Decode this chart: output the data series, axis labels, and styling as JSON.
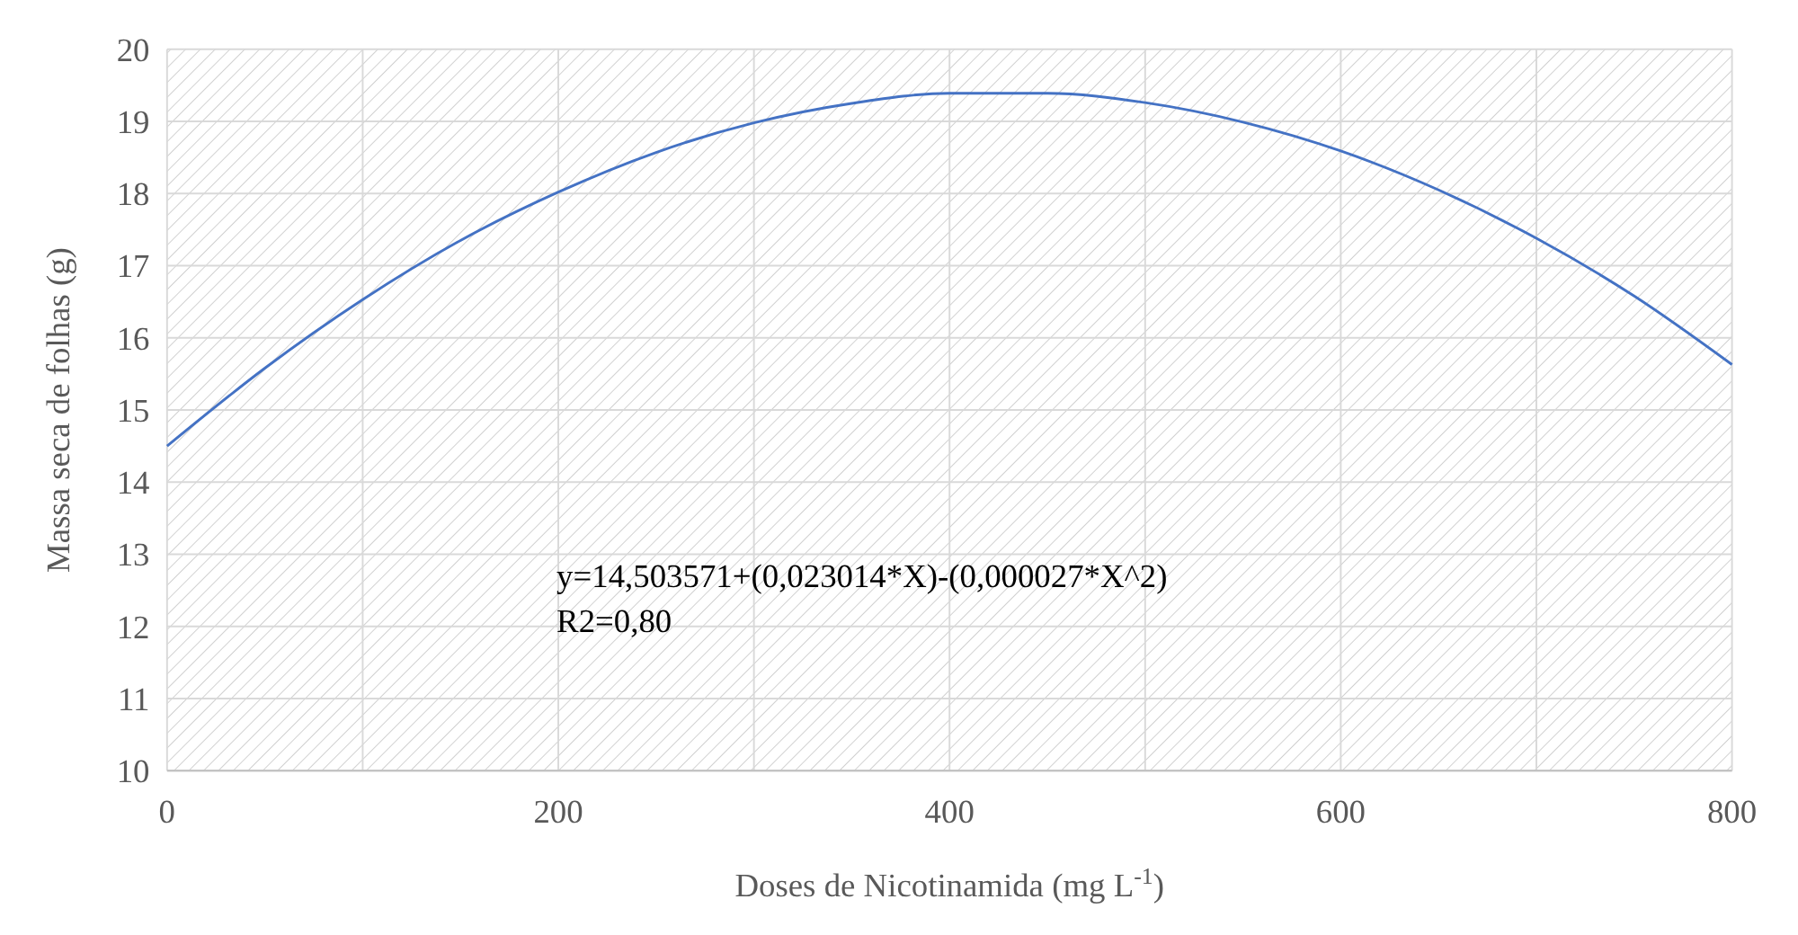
{
  "chart_data": {
    "type": "line",
    "xlabel": "Doses de Nicotinamida  (mg L$^{-1}$)",
    "ylabel": "Massa seca de folhas (g)",
    "annotations": [
      "y=14,503571+(0,023014*X)-(0,000027*X^2)",
      "R2=0,80"
    ],
    "series": [
      {
        "color": "#4472c4",
        "x": [
          0,
          50,
          100,
          150,
          200,
          250,
          300,
          350,
          400,
          450,
          500,
          550,
          600,
          650,
          700,
          750,
          800
        ],
        "values": [
          14.5,
          15.58,
          16.53,
          17.35,
          18.02,
          18.57,
          18.98,
          19.25,
          19.39,
          19.39,
          19.26,
          18.99,
          18.59,
          18.05,
          17.38,
          16.58,
          15.63
        ]
      }
    ],
    "xlim": [
      0,
      800
    ],
    "xticks": [
      0,
      {
        "value": 100,
        "label": null
      },
      200,
      {
        "value": 300,
        "label": null
      },
      400,
      {
        "value": 500,
        "label": null
      },
      600,
      {
        "value": 700,
        "label": null
      },
      800
    ],
    "ylim": [
      10,
      20
    ],
    "yticks": [
      10,
      11,
      12,
      13,
      14,
      15,
      16,
      17,
      18,
      19,
      20
    ],
    "grid": true
  }
}
